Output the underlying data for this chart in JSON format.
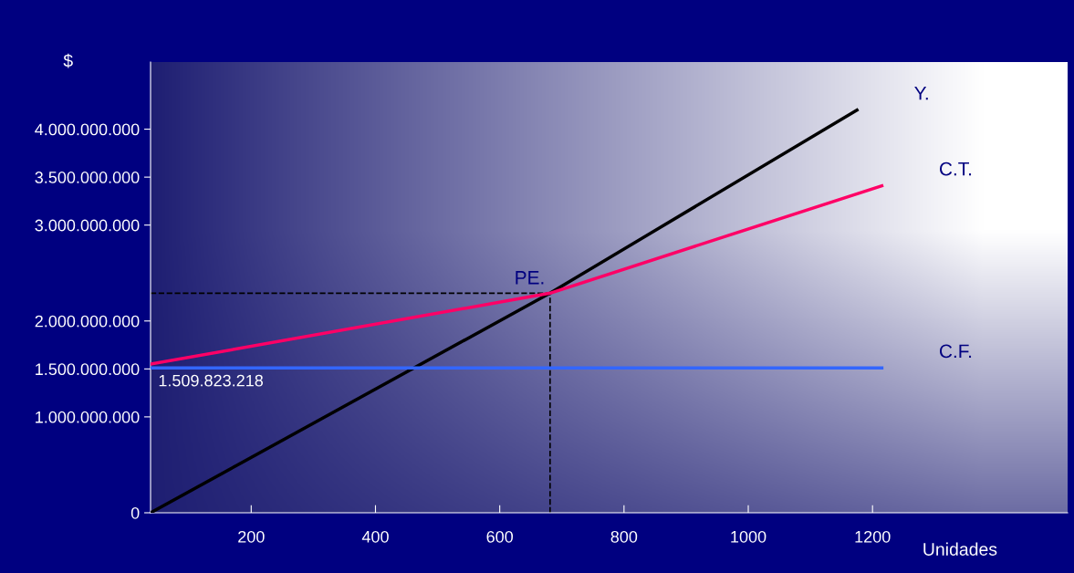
{
  "chart_data": {
    "type": "line",
    "xlabel": "Unidades",
    "ylabel": "$",
    "xlim": [
      38,
      1514
    ],
    "xticks": [
      200,
      400,
      600,
      800,
      1000,
      1200
    ],
    "ylim": [
      0,
      4700000000
    ],
    "yticks": [
      {
        "value": 0,
        "label": "0"
      },
      {
        "value": 1000000000,
        "label": "1.000.000.000"
      },
      {
        "value": 1500000000,
        "label": "1.500.000.000"
      },
      {
        "value": 2000000000,
        "label": "2.000.000.000"
      },
      {
        "value": 3000000000,
        "label": "3.000.000.000"
      },
      {
        "value": 3500000000,
        "label": "3.500.000.000"
      },
      {
        "value": 4000000000,
        "label": "4.000.000.000"
      }
    ],
    "series": [
      {
        "name": "Y.",
        "color": "#000000",
        "x": [
          38,
          681,
          1175
        ],
        "values": [
          0,
          2290000000,
          4200000000
        ]
      },
      {
        "name": "C.T.",
        "color": "#ff0066",
        "x": [
          38,
          681,
          1215
        ],
        "values": [
          1550000000,
          2290000000,
          3410000000
        ]
      },
      {
        "name": "C.F.",
        "color": "#3366ff",
        "x": [
          38,
          1215
        ],
        "values": [
          1509823218,
          1509823218
        ],
        "value_labels": [
          "1.509.823.218",
          null
        ]
      }
    ],
    "ref_lines": [
      {
        "axis": "x",
        "value": 681,
        "color": "#000000",
        "line_style": "dashed"
      },
      {
        "axis": "y",
        "value": 2290000000,
        "color": "#000000",
        "line_style": "dashed"
      }
    ],
    "annotations": [
      {
        "text": "PE.",
        "x": 681,
        "y": 2290000000
      }
    ],
    "grid": false,
    "legend": false,
    "marker": "none",
    "line_style": "solid"
  }
}
